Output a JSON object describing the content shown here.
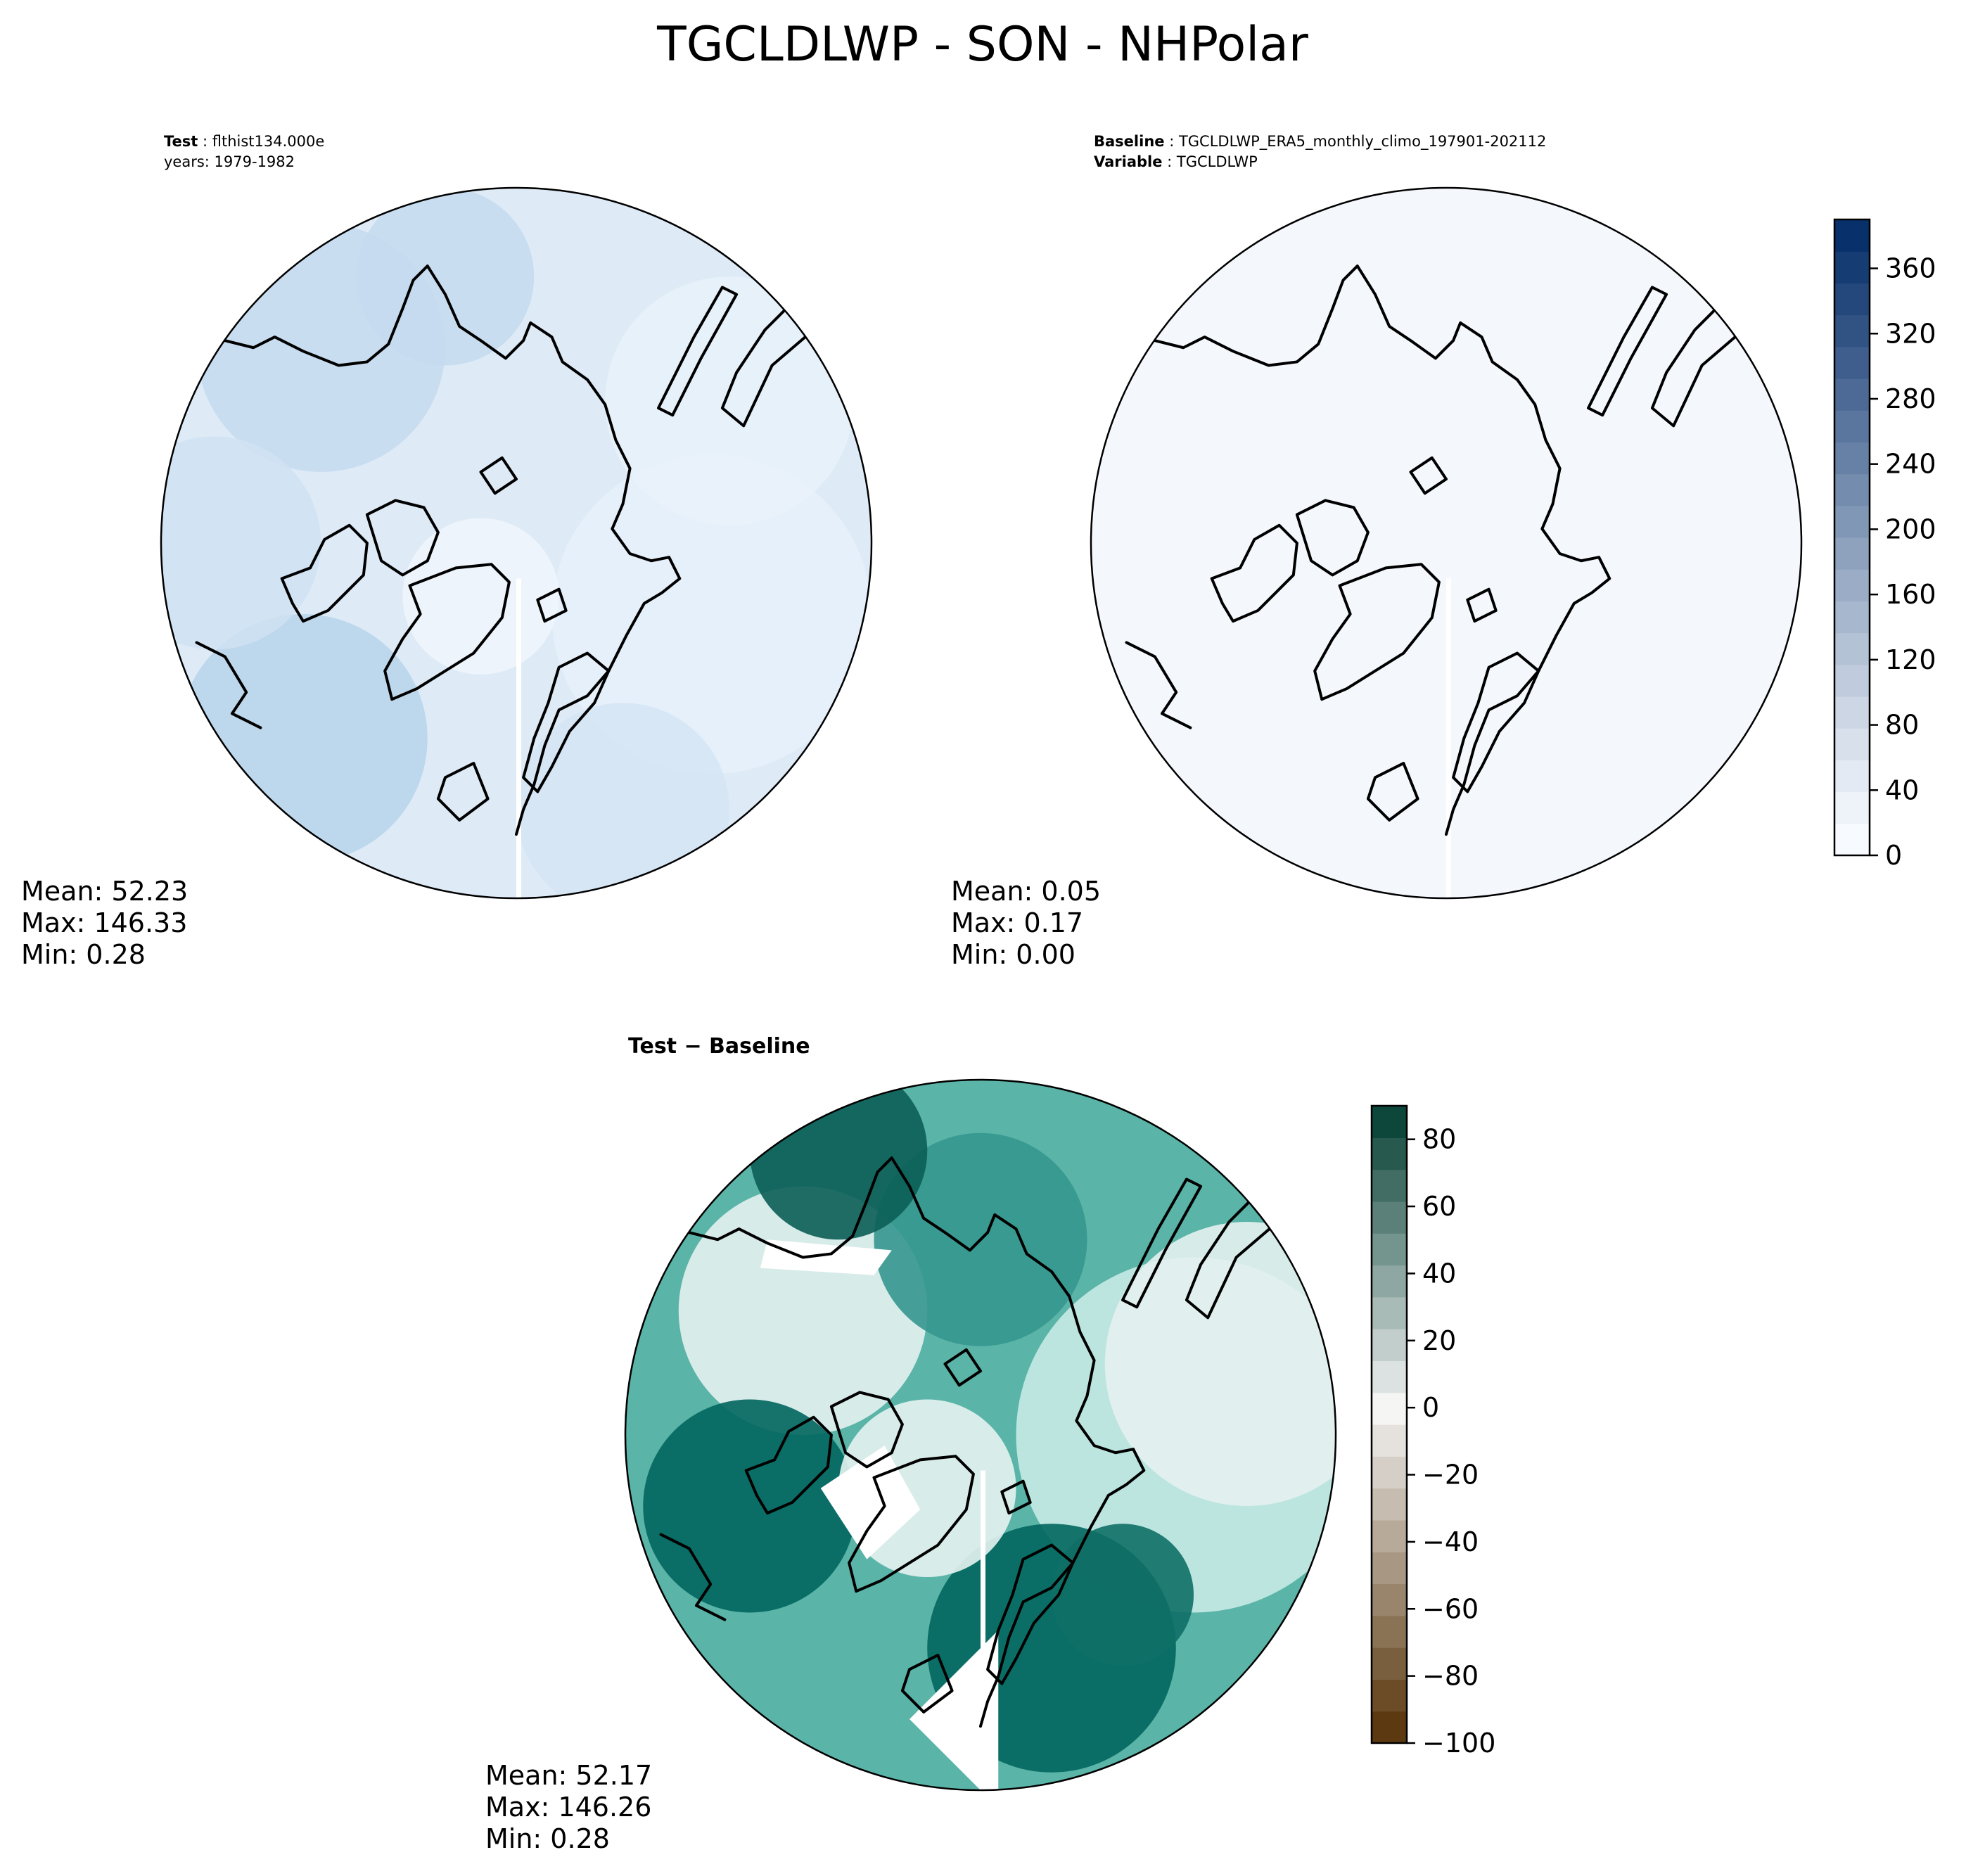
{
  "figure": {
    "title": "TGCLDLWP - SON - NHPolar"
  },
  "panels": [
    {
      "id": "test",
      "header_lines": [
        {
          "label": "Test",
          "text": "flthist134.000e"
        },
        {
          "label": "",
          "text": "years: 1979-1982"
        }
      ],
      "stats": {
        "mean": "Mean: 52.23",
        "max": "Max: 146.33",
        "min": "Min:  0.28"
      }
    },
    {
      "id": "baseline",
      "header_lines": [
        {
          "label": "Baseline",
          "text": "TGCLDLWP_ERA5_monthly_climo_197901-202112"
        },
        {
          "label": "Variable",
          "text": "TGCLDLWP"
        }
      ],
      "stats": {
        "mean": "Mean:  0.05",
        "max": "Max:  0.17",
        "min": "Min:  0.00"
      }
    },
    {
      "id": "difference",
      "header_lines": [
        {
          "label": "Test − Baseline",
          "text": ""
        }
      ],
      "stats": {
        "mean": "Mean: 52.17",
        "max": "Max: 146.26",
        "min": "Min:  0.28"
      }
    }
  ],
  "colorbars": {
    "top": {
      "cmap": "Blues",
      "vmin": 0,
      "vmax": 390,
      "ticks": [
        0,
        40,
        80,
        120,
        160,
        200,
        240,
        280,
        320,
        360
      ],
      "tick_labels": [
        "0",
        "40",
        "80",
        "120",
        "160",
        "200",
        "240",
        "280",
        "320",
        "360"
      ],
      "color_low": "#f7fbff",
      "color_high": "#08306b"
    },
    "bottom": {
      "cmap": "BrBG",
      "vmin": -100,
      "vmax": 90,
      "ticks": [
        -100,
        -80,
        -60,
        -40,
        -20,
        0,
        20,
        40,
        60,
        80
      ],
      "tick_labels": [
        "−100",
        "−80",
        "−60",
        "−40",
        "−20",
        "0",
        "20",
        "40",
        "60",
        "80"
      ],
      "color_low": "#543005",
      "color_mid": "#f5f5f5",
      "color_high": "#003c30"
    }
  }
}
